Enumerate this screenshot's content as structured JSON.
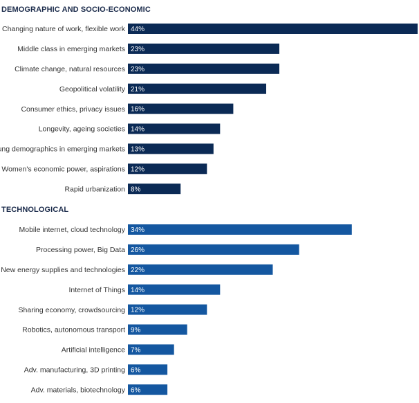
{
  "chart_data": {
    "type": "bar",
    "orientation": "horizontal",
    "xlim": [
      0,
      44
    ],
    "value_suffix": "%",
    "groups": [
      {
        "title": "DEMOGRAPHIC AND SOCIO-ECONOMIC",
        "color": "#0b2a55",
        "categories": [
          "Changing nature of work, flexible work",
          "Middle class in emerging markets",
          "Climate change, natural resources",
          "Geopolitical volatility",
          "Consumer ethics, privacy issues",
          "Longevity, ageing societies",
          "Young demographics in emerging markets",
          "Women's economic power, aspirations",
          "Rapid urbanization"
        ],
        "values": [
          44,
          23,
          23,
          21,
          16,
          14,
          13,
          12,
          8
        ]
      },
      {
        "title": "TECHNOLOGICAL",
        "color": "#1457a0",
        "categories": [
          "Mobile internet, cloud technology",
          "Processing power, Big Data",
          "New energy supplies and technologies",
          "Internet of Things",
          "Sharing economy, crowdsourcing",
          "Robotics, autonomous transport",
          "Artificial intelligence",
          "Adv. manufacturing, 3D printing",
          "Adv. materials, biotechnology"
        ],
        "values": [
          34,
          26,
          22,
          14,
          12,
          9,
          7,
          6,
          6
        ]
      }
    ]
  }
}
